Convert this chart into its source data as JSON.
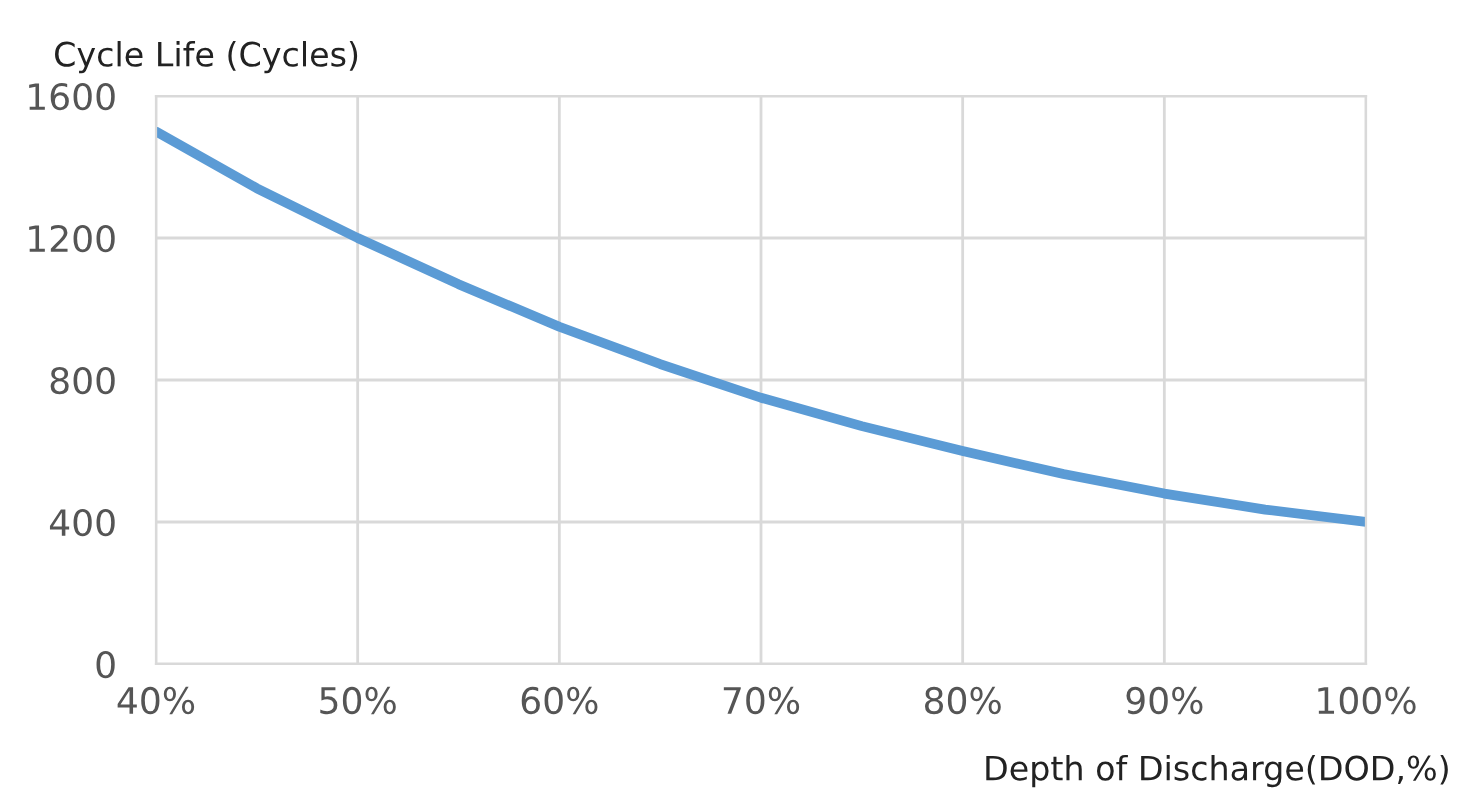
{
  "chart_data": {
    "type": "line",
    "xlabel": "Depth of Discharge(DOD,%)",
    "ylabel": "Cycle Life (Cycles)",
    "x": [
      40,
      45,
      50,
      55,
      60,
      65,
      70,
      75,
      80,
      85,
      90,
      95,
      100
    ],
    "series": [
      {
        "color": "#5b9bd5",
        "values": [
          1500,
          1340,
          1200,
          1070,
          950,
          845,
          750,
          670,
          600,
          535,
          480,
          435,
          400
        ]
      }
    ],
    "xlim": [
      40,
      100
    ],
    "ylim": [
      0,
      1600
    ],
    "xticks": [
      {
        "value": 40,
        "label": "40%"
      },
      {
        "value": 50,
        "label": "50%"
      },
      {
        "value": 60,
        "label": "60%"
      },
      {
        "value": 70,
        "label": "70%"
      },
      {
        "value": 80,
        "label": "80%"
      },
      {
        "value": 90,
        "label": "90%"
      },
      {
        "value": 100,
        "label": "100%"
      }
    ],
    "yticks": [
      0,
      400,
      800,
      1200,
      1600
    ],
    "grid": true,
    "legend": false,
    "marker": "none",
    "line_style": "solid"
  }
}
